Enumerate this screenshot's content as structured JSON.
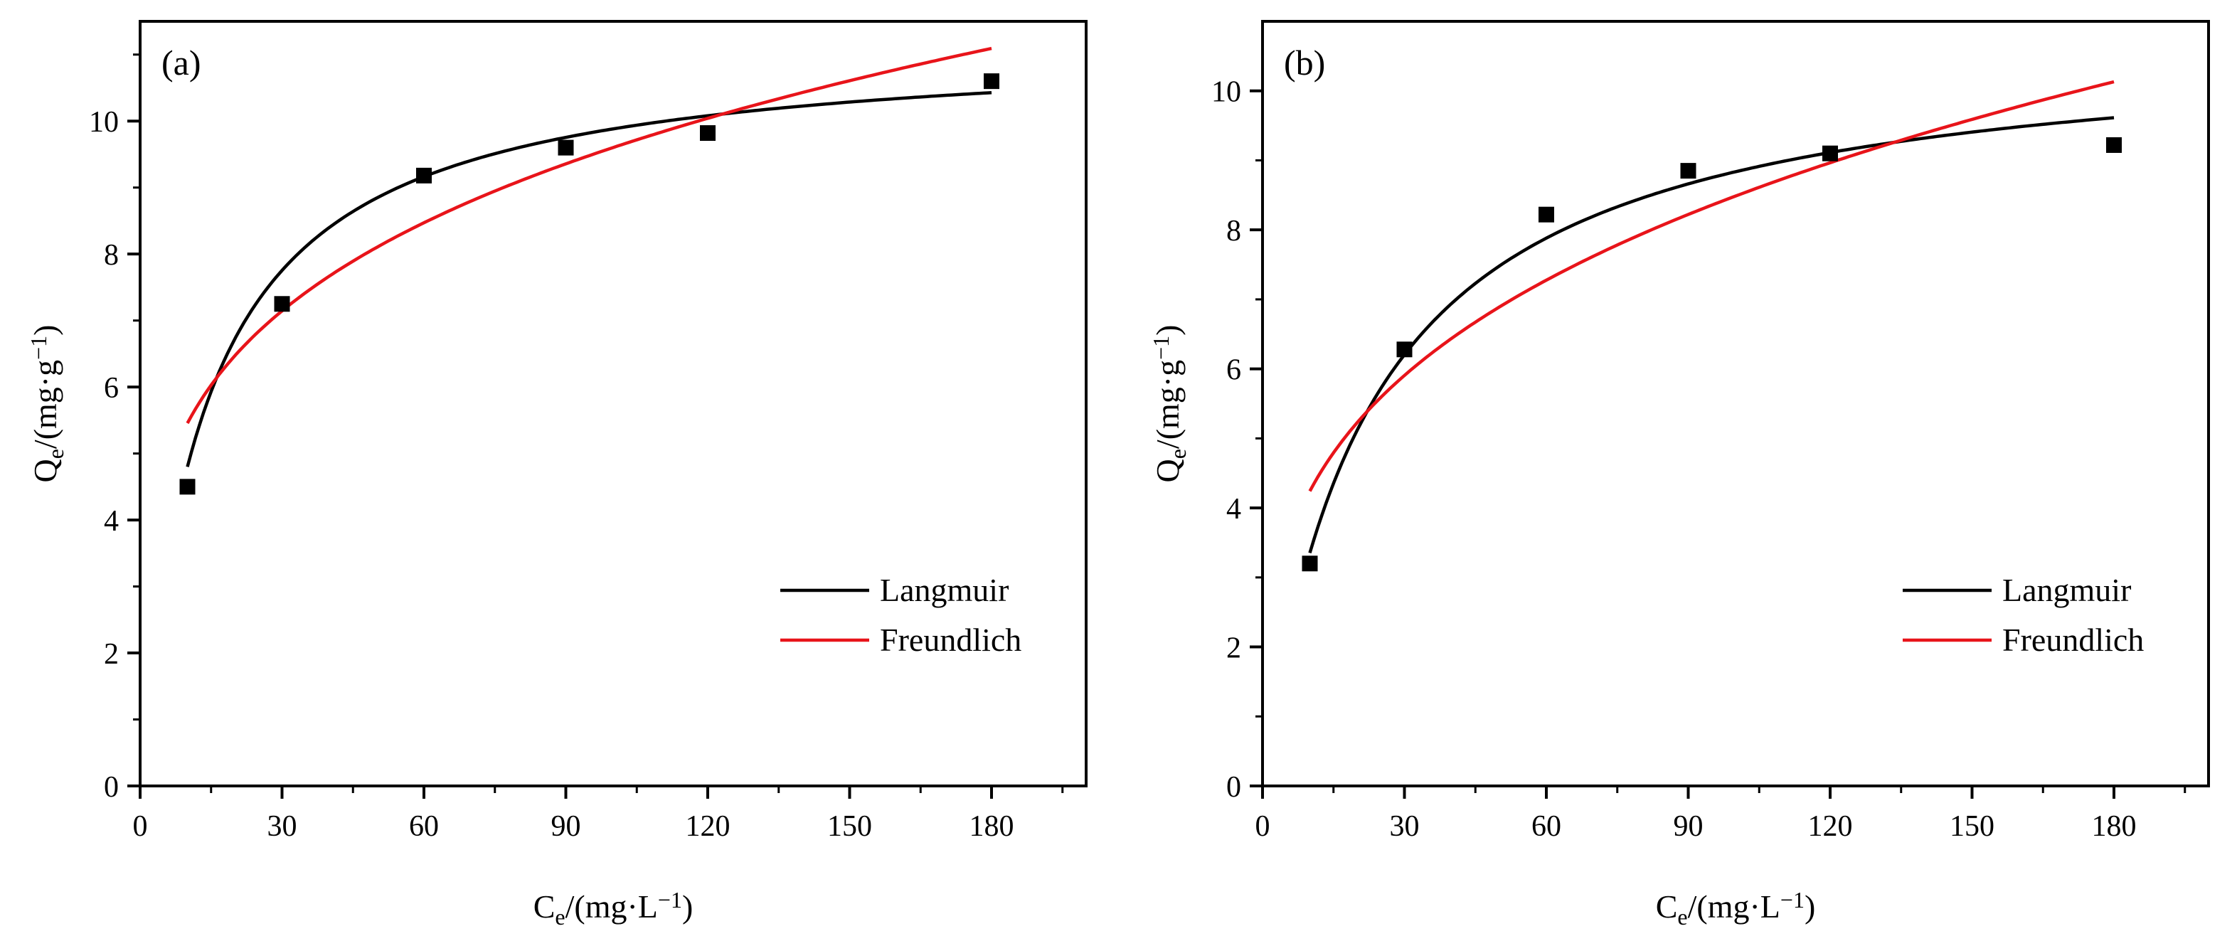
{
  "chart_data": [
    {
      "type": "scatter",
      "panel_label": "(a)",
      "xlabel": {
        "main": "C",
        "sub": "e",
        "rest": "/(mg·L",
        "sup": "−1",
        "close": ")"
      },
      "ylabel": {
        "main": "Q",
        "sub": "e",
        "rest": "/(mg·g",
        "sup": "−1",
        "close": ")"
      },
      "xlim": [
        0,
        200
      ],
      "ylim": [
        0,
        11.5
      ],
      "xticks": [
        0,
        30,
        60,
        90,
        120,
        150,
        180
      ],
      "xtick_labels": [
        "0",
        "30",
        "60",
        "90",
        "120",
        "150",
        "180"
      ],
      "yticks": [
        0,
        2,
        4,
        6,
        8,
        10
      ],
      "ytick_labels": [
        "0",
        "2",
        "4",
        "6",
        "8",
        "10"
      ],
      "legend_position": "bottom-right",
      "points": [
        {
          "x": 10,
          "y": 4.5
        },
        {
          "x": 30,
          "y": 7.25
        },
        {
          "x": 60,
          "y": 9.18
        },
        {
          "x": 90,
          "y": 9.6
        },
        {
          "x": 120,
          "y": 9.82
        },
        {
          "x": 180,
          "y": 10.6
        }
      ],
      "series": [
        {
          "name": "Langmuir",
          "color": "#000000",
          "model": "langmuir",
          "qm": 11.2,
          "kl": 0.075,
          "x_range": [
            10,
            180
          ]
        },
        {
          "name": "Freundlich",
          "color": "#e8141a",
          "model": "freundlich",
          "kf": 3.1,
          "n_inv": 0.2455,
          "x_range": [
            10,
            180
          ]
        }
      ]
    },
    {
      "type": "scatter",
      "panel_label": "(b)",
      "xlabel": {
        "main": "C",
        "sub": "e",
        "rest": "/(mg·L",
        "sup": "−1",
        "close": ")"
      },
      "ylabel": {
        "main": "Q",
        "sub": "e",
        "rest": "/(mg·g",
        "sup": "−1",
        "close": ")"
      },
      "xlim": [
        0,
        200
      ],
      "ylim": [
        0,
        11
      ],
      "xticks": [
        0,
        30,
        60,
        90,
        120,
        150,
        180
      ],
      "xtick_labels": [
        "0",
        "30",
        "60",
        "90",
        "120",
        "150",
        "180"
      ],
      "yticks": [
        0,
        2,
        4,
        6,
        8,
        10
      ],
      "ytick_labels": [
        "0",
        "2",
        "4",
        "6",
        "8",
        "10"
      ],
      "legend_position": "bottom-right",
      "points": [
        {
          "x": 10,
          "y": 3.2
        },
        {
          "x": 30,
          "y": 6.28
        },
        {
          "x": 60,
          "y": 8.22
        },
        {
          "x": 90,
          "y": 8.85
        },
        {
          "x": 120,
          "y": 9.1
        },
        {
          "x": 180,
          "y": 9.22
        }
      ],
      "series": [
        {
          "name": "Langmuir",
          "color": "#000000",
          "model": "langmuir",
          "qm": 10.8,
          "kl": 0.045,
          "x_range": [
            10,
            180
          ]
        },
        {
          "name": "Freundlich",
          "color": "#e8141a",
          "model": "freundlich",
          "kf": 2.12,
          "n_inv": 0.3012,
          "x_range": [
            10,
            180
          ]
        }
      ]
    }
  ]
}
